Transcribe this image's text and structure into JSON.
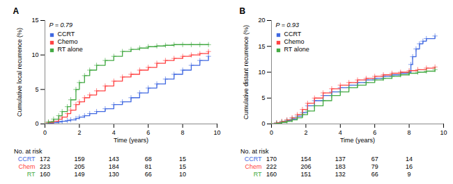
{
  "chart_data": [
    {
      "type": "step",
      "title": "A",
      "annotation": "P = 0.79",
      "xlabel": "Time (years)",
      "ylabel": "Cumulative local recurrence (%)",
      "xlim": [
        0,
        10
      ],
      "ylim": [
        0,
        15
      ],
      "xticks": [
        0,
        2,
        4,
        6,
        8,
        10
      ],
      "yticks": [
        0,
        5,
        10,
        15
      ],
      "grid": false,
      "legend": "upper left",
      "marker": "plus",
      "series": [
        {
          "name": "CCRT",
          "color": "#4169E1",
          "x": [
            0,
            0.2,
            0.5,
            0.8,
            1.0,
            1.3,
            1.5,
            1.8,
            2.0,
            2.3,
            2.6,
            3.0,
            3.5,
            4.0,
            4.5,
            5.0,
            5.5,
            6.0,
            6.5,
            7.0,
            7.5,
            8.0,
            8.5,
            9.0,
            9.5
          ],
          "values": [
            0,
            0.1,
            0.2,
            0.3,
            0.4,
            0.5,
            0.6,
            0.8,
            1.0,
            1.2,
            1.5,
            1.8,
            2.2,
            2.8,
            3.2,
            3.8,
            4.5,
            5.2,
            5.8,
            6.5,
            7.2,
            7.8,
            8.5,
            9.2,
            9.8
          ]
        },
        {
          "name": "Chemo",
          "color": "#FF4444",
          "x": [
            0,
            0.2,
            0.5,
            0.8,
            1.0,
            1.3,
            1.5,
            1.8,
            2.0,
            2.3,
            2.6,
            3.0,
            3.5,
            4.0,
            4.5,
            5.0,
            5.5,
            6.0,
            6.5,
            7.0,
            7.5,
            8.0,
            8.5,
            9.0,
            9.5
          ],
          "values": [
            0,
            0.2,
            0.4,
            0.7,
            1.0,
            1.5,
            2.0,
            2.8,
            3.2,
            3.8,
            4.2,
            4.8,
            5.5,
            6.2,
            6.8,
            7.2,
            7.8,
            8.2,
            8.8,
            9.2,
            9.5,
            9.8,
            10.0,
            10.2,
            10.5
          ]
        },
        {
          "name": "RT alone",
          "color": "#44AA44",
          "x": [
            0,
            0.2,
            0.5,
            0.8,
            1.0,
            1.3,
            1.5,
            1.8,
            2.0,
            2.3,
            2.6,
            3.0,
            3.5,
            4.0,
            4.5,
            5.0,
            5.5,
            6.0,
            6.5,
            7.0,
            7.5,
            8.0,
            8.5,
            9.0,
            9.5
          ],
          "values": [
            0,
            0.3,
            0.7,
            1.2,
            1.8,
            2.5,
            3.5,
            5.0,
            6.0,
            7.0,
            7.8,
            8.5,
            9.2,
            9.8,
            10.5,
            10.8,
            11.0,
            11.2,
            11.3,
            11.4,
            11.5,
            11.5,
            11.5,
            11.5,
            11.5
          ]
        }
      ],
      "risk_table": {
        "title": "No. at risk",
        "times": [
          0,
          2,
          4,
          6,
          8
        ],
        "rows": [
          {
            "name": "CCRT",
            "color": "#4169E1",
            "values": [
              172,
              159,
              143,
              68,
              15
            ]
          },
          {
            "name": "Chem",
            "color": "#FF4444",
            "values": [
              223,
              205,
              184,
              81,
              15
            ]
          },
          {
            "name": "RT",
            "color": "#44AA44",
            "values": [
              160,
              149,
              130,
              66,
              10
            ]
          }
        ]
      }
    },
    {
      "type": "step",
      "title": "B",
      "annotation": "P = 0.93",
      "xlabel": "Time (years)",
      "ylabel": "Cumulative distant recurrence (%)",
      "xlim": [
        0,
        10
      ],
      "ylim": [
        0,
        20
      ],
      "xticks": [
        0,
        2,
        4,
        6,
        8,
        10
      ],
      "yticks": [
        0,
        5,
        10,
        15,
        20
      ],
      "grid": false,
      "legend": "upper left",
      "marker": "plus",
      "series": [
        {
          "name": "CCRT",
          "color": "#4169E1",
          "x": [
            0,
            0.3,
            0.6,
            0.9,
            1.2,
            1.5,
            1.8,
            2.1,
            2.5,
            3.0,
            3.5,
            4.0,
            4.5,
            5.0,
            5.5,
            6.0,
            6.5,
            7.0,
            7.5,
            8.0,
            8.1,
            8.2,
            8.4,
            8.6,
            8.8,
            9.0,
            9.5
          ],
          "values": [
            0,
            0.2,
            0.4,
            0.7,
            1.0,
            1.5,
            2.2,
            3.5,
            4.5,
            5.5,
            6.2,
            7.0,
            7.5,
            8.0,
            8.5,
            8.8,
            9.2,
            9.5,
            9.8,
            10.0,
            11.5,
            13.0,
            14.5,
            15.5,
            16.0,
            16.5,
            17.0
          ]
        },
        {
          "name": "Chemo",
          "color": "#FF4444",
          "x": [
            0,
            0.3,
            0.6,
            0.9,
            1.2,
            1.5,
            1.8,
            2.1,
            2.5,
            3.0,
            3.5,
            4.0,
            4.5,
            5.0,
            5.5,
            6.0,
            6.5,
            7.0,
            7.5,
            8.0,
            8.5,
            9.0,
            9.5
          ],
          "values": [
            0,
            0.2,
            0.5,
            0.8,
            1.2,
            1.8,
            2.8,
            4.0,
            5.0,
            6.0,
            6.8,
            7.5,
            8.0,
            8.5,
            8.8,
            9.2,
            9.5,
            9.8,
            10.0,
            10.3,
            10.5,
            10.8,
            11.0
          ]
        },
        {
          "name": "RT alone",
          "color": "#44AA44",
          "x": [
            0,
            0.3,
            0.6,
            0.9,
            1.2,
            1.5,
            1.8,
            2.1,
            2.5,
            3.0,
            3.5,
            4.0,
            4.5,
            5.0,
            5.5,
            6.0,
            6.5,
            7.0,
            7.5,
            8.0,
            8.5,
            9.0,
            9.5
          ],
          "values": [
            0,
            0.1,
            0.3,
            0.5,
            0.8,
            1.2,
            1.8,
            2.5,
            3.5,
            4.5,
            5.5,
            6.2,
            7.0,
            7.5,
            8.0,
            8.5,
            8.8,
            9.2,
            9.5,
            9.8,
            10.0,
            10.2,
            10.5
          ]
        }
      ],
      "risk_table": {
        "title": "No. at risk",
        "times": [
          0,
          2,
          4,
          6,
          8
        ],
        "rows": [
          {
            "name": "CCRT",
            "color": "#4169E1",
            "values": [
              170,
              154,
              137,
              67,
              14
            ]
          },
          {
            "name": "Chem",
            "color": "#FF4444",
            "values": [
              222,
              206,
              183,
              79,
              16
            ]
          },
          {
            "name": "RT",
            "color": "#44AA44",
            "values": [
              160,
              151,
              132,
              66,
              9
            ]
          }
        ]
      }
    }
  ]
}
